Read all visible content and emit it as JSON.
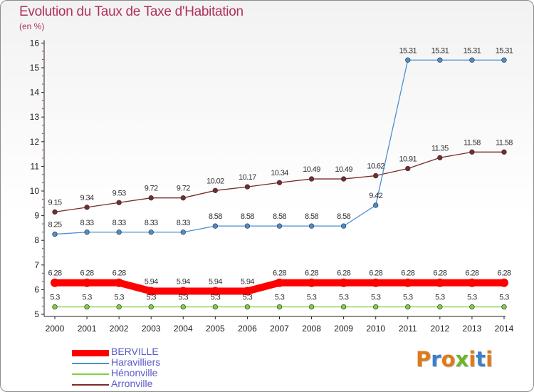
{
  "header": {
    "title": "Evolution du Taux de Taxe d'Habitation",
    "subtitle": "(en %)"
  },
  "logo": {
    "text": "Proxiti",
    "colors": [
      "#e07a16",
      "#3a7fd0",
      "#e07a16",
      "#6bb52a",
      "#e07a16",
      "#3a7fd0",
      "#e07a16"
    ]
  },
  "chart_data": {
    "type": "line",
    "x": [
      "2000",
      "2001",
      "2002",
      "2003",
      "2004",
      "2005",
      "2006",
      "2007",
      "2008",
      "2009",
      "2010",
      "2011",
      "2012",
      "2013",
      "2014"
    ],
    "ylim": [
      5,
      16
    ],
    "yticks": [
      "5",
      "6",
      "7",
      "8",
      "9",
      "10",
      "11",
      "12",
      "13",
      "14",
      "15",
      "16"
    ],
    "grid": false,
    "legend_position": "bottom-left",
    "series": [
      {
        "name": "BERVILLE",
        "color": "#ff0000",
        "values": [
          6.28,
          6.28,
          6.28,
          5.94,
          5.94,
          5.94,
          5.94,
          6.28,
          6.28,
          6.28,
          6.28,
          6.28,
          6.28,
          6.28,
          6.28
        ],
        "labels": [
          "6.28",
          "6.28",
          "6.28",
          "5.94",
          "5.94",
          "5.94",
          "5.94",
          "6.28",
          "6.28",
          "6.28",
          "6.28",
          "6.28",
          "6.28",
          "6.28",
          "6.28"
        ]
      },
      {
        "name": "Haravilliers",
        "color": "#4a90d0",
        "values": [
          8.25,
          8.33,
          8.33,
          8.33,
          8.33,
          8.58,
          8.58,
          8.58,
          8.58,
          8.58,
          9.42,
          15.31,
          15.31,
          15.31,
          15.31
        ],
        "labels": [
          "8.25",
          "8.33",
          "8.33",
          "8.33",
          "8.33",
          "8.58",
          "8.58",
          "8.58",
          "8.58",
          "8.58",
          "9.42",
          "15.31",
          "15.31",
          "15.31",
          "15.31"
        ]
      },
      {
        "name": "Hénonville",
        "color": "#7fd040",
        "values": [
          5.3,
          5.3,
          5.3,
          5.3,
          5.3,
          5.3,
          5.3,
          5.3,
          5.3,
          5.3,
          5.3,
          5.3,
          5.3,
          5.3,
          5.3
        ],
        "labels": [
          "5.3",
          "5.3",
          "5.3",
          "5.3",
          "5.3",
          "5.3",
          "5.3",
          "5.3",
          "5.3",
          "5.3",
          "5.3",
          "5.3",
          "5.3",
          "5.3",
          "5.3"
        ]
      },
      {
        "name": "Arronville",
        "color": "#7a2a2a",
        "values": [
          9.15,
          9.34,
          9.53,
          9.72,
          9.72,
          10.02,
          10.17,
          10.34,
          10.49,
          10.49,
          10.62,
          10.91,
          11.35,
          11.58,
          11.58
        ],
        "labels": [
          "9.15",
          "9.34",
          "9.53",
          "9.72",
          "9.72",
          "10.02",
          "10.17",
          "10.34",
          "10.49",
          "10.49",
          "10.62",
          "10.91",
          "11.35",
          "11.58",
          "11.58"
        ]
      }
    ]
  }
}
